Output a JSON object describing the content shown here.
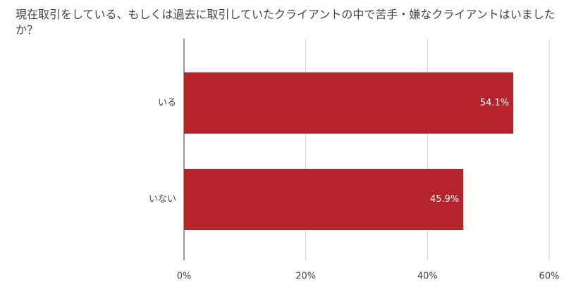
{
  "chart_data": {
    "type": "bar",
    "orientation": "horizontal",
    "title": "現在取引をしている、もしくは過去に取引していたクライアントの中で苦手・嫌なクライアントはいましたか？",
    "categories": [
      "いる",
      "いない"
    ],
    "values": [
      54.1,
      45.9
    ],
    "value_labels": [
      "54.1%",
      "45.9%"
    ],
    "color": "#b7232b",
    "xlim": [
      0,
      60
    ],
    "xticks": [
      {
        "value": 0,
        "label": "0%"
      },
      {
        "value": 20,
        "label": "20%"
      },
      {
        "value": 40,
        "label": "40%"
      },
      {
        "value": 60,
        "label": "60%"
      }
    ],
    "grid": true
  }
}
